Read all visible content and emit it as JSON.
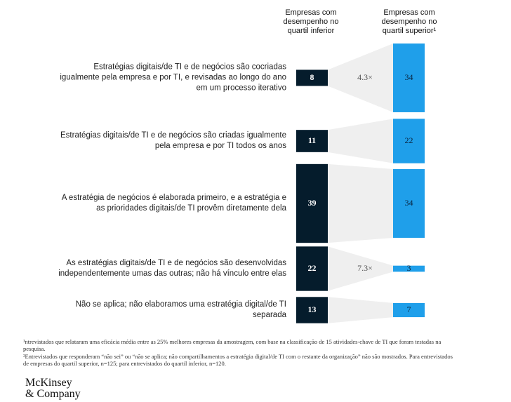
{
  "chart_data": {
    "type": "paired-bar",
    "column_headers": [
      "Empresas com desempenho no quartil inferior",
      "Empresas com desempenho no quartil superior¹"
    ],
    "categories": [
      "Estratégias digitais/de TI e de negócios são cocriadas igualmente pela empresa e por TI, e revisadas ao longo do ano em um processo iterativo",
      "Estratégias digitais/de TI e de negócios são criadas igualmente pela empresa e por TI todos os anos",
      "A estratégia de negócios é elaborada primeiro, e a estratégia e as prioridades digitais/de TI provêm diretamente dela",
      "As estratégias digitais/de TI e de negócios são desenvolvidas independentemente umas das outras; não há vínculo entre elas",
      "Não se aplica; não elaboramos uma estratégia digital/de TI separada"
    ],
    "series": [
      {
        "name": "Empresas com desempenho no quartil inferior",
        "color": "#051c2c",
        "values": [
          8,
          11,
          39,
          22,
          13
        ]
      },
      {
        "name": "Empresas com desempenho no quartil superior",
        "color": "#1f9fea",
        "values": [
          34,
          22,
          34,
          3,
          7
        ]
      }
    ],
    "annotations": [
      {
        "category": 0,
        "text": "4.3×"
      },
      {
        "category": 3,
        "text": "7.3×"
      }
    ],
    "footnotes": [
      "¹ntrevistados que relataram uma eficácia média entre as 25% melhores empresas da amostragem, com base na classificação de 15 atividades-chave de TI que foram testadas na pesquisa.",
      "²Entrevistados que responderam “não sei” ou “não se aplica; não compartilhamentos a estratégia digital/de TI com o restante da organização” não são mostrados. Para entrevistados de empresas do quartil superior, n=125; para entrevistados do quartil inferior, n=120."
    ],
    "logo": [
      "McKinsey",
      "& Company"
    ]
  }
}
